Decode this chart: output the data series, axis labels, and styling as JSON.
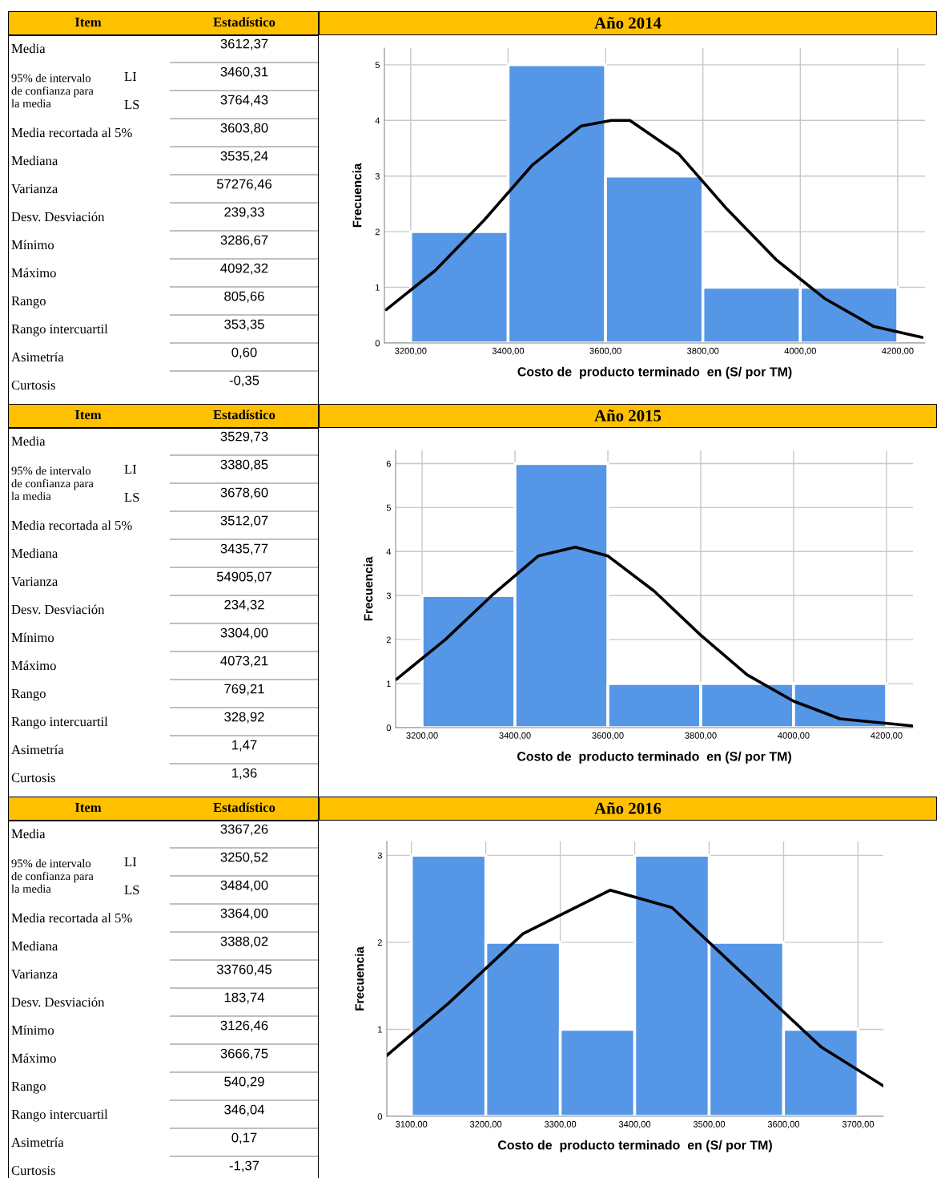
{
  "chart_data": [
    {
      "type": "other",
      "categories": [
        "Media",
        "LI",
        "LS",
        "Media recortada al 5%",
        "Mediana",
        "Varianza",
        "Desv. Desviación",
        "Mínimo",
        "Máximo",
        "Rango",
        "Rango intercuartil",
        "Asimetría",
        "Curtosis"
      ],
      "value_labels": [
        "3612,37",
        "3460,31",
        "3764,43",
        "3603,80",
        "3535,24",
        "57276,46",
        "239,33",
        "3286,67",
        "4092,32",
        "805,66",
        "353,35",
        "0,60",
        "-0,35"
      ],
      "annotations": [
        "Item",
        "Estadístico",
        "95% de intervalo\nde confianza para\nla media"
      ]
    },
    {
      "type": "histogram",
      "title": "Año 2014",
      "xlabel": "Costo de  producto terminado  en (S/ por TM)",
      "ylabel": "Frecuencia",
      "bins": [
        3200,
        3400,
        3600,
        3800,
        4000,
        4200
      ],
      "values": [
        2,
        5,
        3,
        1,
        1
      ],
      "color": "#5596e6",
      "series": [
        {
          "type": "line",
          "color": "#000000",
          "x": [
            3150,
            3250,
            3350,
            3450,
            3550,
            3612,
            3650,
            3750,
            3850,
            3950,
            4050,
            4150,
            4250
          ],
          "values": [
            0.6,
            1.3,
            2.2,
            3.2,
            3.9,
            4.0,
            4.0,
            3.4,
            2.4,
            1.5,
            0.8,
            0.3,
            0.1
          ]
        }
      ],
      "xlim": [
        3146,
        4256
      ],
      "ylim": [
        0,
        5.3
      ],
      "xticks": [
        {
          "value": 3200,
          "label": "3200,00"
        },
        {
          "value": 3400,
          "label": "3400,00"
        },
        {
          "value": 3600,
          "label": "3600,00"
        },
        {
          "value": 3800,
          "label": "3800,00"
        },
        {
          "value": 4000,
          "label": "4000,00"
        },
        {
          "value": 4200,
          "label": "4200,00"
        }
      ],
      "yticks": [
        0,
        1,
        2,
        3,
        4,
        5
      ],
      "grid": true
    },
    {
      "type": "other",
      "categories": [
        "Media",
        "LI",
        "LS",
        "Media recortada al 5%",
        "Mediana",
        "Varianza",
        "Desv. Desviación",
        "Mínimo",
        "Máximo",
        "Rango",
        "Rango intercuartil",
        "Asimetría",
        "Curtosis"
      ],
      "value_labels": [
        "3529,73",
        "3380,85",
        "3678,60",
        "3512,07",
        "3435,77",
        "54905,07",
        "234,32",
        "3304,00",
        "4073,21",
        "769,21",
        "328,92",
        "1,47",
        "1,36"
      ],
      "annotations": [
        "Item",
        "Estadístico",
        "95% de intervalo\nde confianza para\nla media"
      ]
    },
    {
      "type": "histogram",
      "title": "Año 2015",
      "xlabel": "Costo de  producto terminado  en (S/ por TM)",
      "ylabel": "Frecuencia",
      "bins": [
        3200,
        3400,
        3600,
        3800,
        4000,
        4200
      ],
      "values": [
        3,
        6,
        1,
        1,
        1
      ],
      "color": "#5596e6",
      "series": [
        {
          "type": "line",
          "color": "#000000",
          "x": [
            3145,
            3250,
            3350,
            3450,
            3530,
            3600,
            3700,
            3800,
            3900,
            4000,
            4100,
            4255
          ],
          "values": [
            1.1,
            2.0,
            3.0,
            3.9,
            4.1,
            3.9,
            3.1,
            2.1,
            1.2,
            0.6,
            0.2,
            0.04
          ]
        }
      ],
      "xlim": [
        3143,
        4257
      ],
      "ylim": [
        0,
        6.3
      ],
      "xticks": [
        {
          "value": 3200,
          "label": "3200,00"
        },
        {
          "value": 3400,
          "label": "3400,00"
        },
        {
          "value": 3600,
          "label": "3600,00"
        },
        {
          "value": 3800,
          "label": "3800,00"
        },
        {
          "value": 4000,
          "label": "4000,00"
        },
        {
          "value": 4200,
          "label": "4200,00"
        }
      ],
      "yticks": [
        0,
        1,
        2,
        3,
        4,
        5,
        6
      ],
      "grid": true
    },
    {
      "type": "other",
      "categories": [
        "Media",
        "LI",
        "LS",
        "Media recortada al 5%",
        "Mediana",
        "Varianza",
        "Desv. Desviación",
        "Mínimo",
        "Máximo",
        "Rango",
        "Rango intercuartil",
        "Asimetría",
        "Curtosis"
      ],
      "value_labels": [
        "3367,26",
        "3250,52",
        "3484,00",
        "3364,00",
        "3388,02",
        "33760,45",
        "183,74",
        "3126,46",
        "3666,75",
        "540,29",
        "346,04",
        "0,17",
        "-1,37"
      ],
      "annotations": [
        "Item",
        "Estadístico",
        "95% de intervalo\nde confianza para\nla media"
      ]
    },
    {
      "type": "histogram",
      "title": "Año 2016",
      "xlabel": "Costo de  producto terminado  en (S/ por TM)",
      "ylabel": "Frecuencia",
      "bins": [
        3100,
        3200,
        3300,
        3400,
        3500,
        3600,
        3700
      ],
      "values": [
        3,
        2,
        1,
        3,
        2,
        1
      ],
      "color": "#5596e6",
      "series": [
        {
          "type": "line",
          "color": "#000000",
          "x": [
            3067,
            3150,
            3250,
            3367,
            3450,
            3550,
            3650,
            3734
          ],
          "values": [
            0.7,
            1.3,
            2.1,
            2.6,
            2.4,
            1.6,
            0.8,
            0.35
          ]
        }
      ],
      "xlim": [
        3067,
        3734
      ],
      "ylim": [
        0,
        3.16
      ],
      "xticks": [
        {
          "value": 3100,
          "label": "3100,00"
        },
        {
          "value": 3200,
          "label": "3200,00"
        },
        {
          "value": 3300,
          "label": "3300,00"
        },
        {
          "value": 3400,
          "label": "3400,00"
        },
        {
          "value": 3500,
          "label": "3500,00"
        },
        {
          "value": 3600,
          "label": "3600,00"
        },
        {
          "value": 3700,
          "label": "3700,00"
        }
      ],
      "yticks": [
        0,
        1,
        2,
        3
      ],
      "grid": true
    }
  ]
}
